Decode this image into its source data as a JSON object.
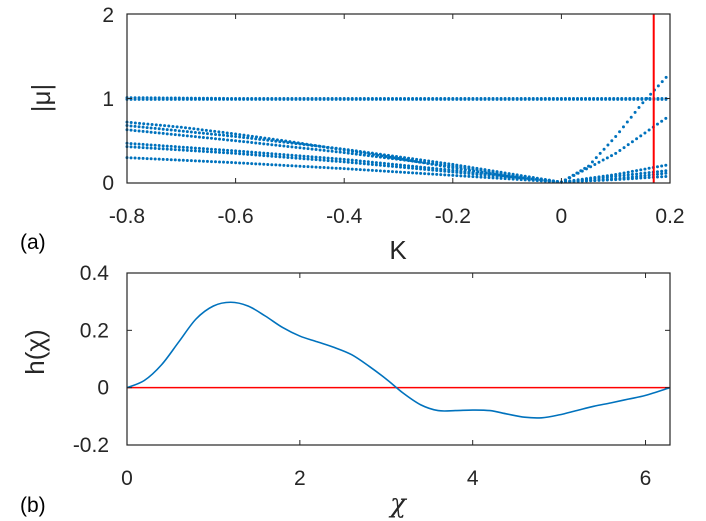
{
  "chart_data": [
    {
      "type": "scatter",
      "panel_label": "(a)",
      "xlabel": "K",
      "ylabel": "|μ|",
      "xlim": [
        -0.8,
        0.2
      ],
      "ylim": [
        0,
        2
      ],
      "xticks": [
        "-0.8",
        "-0.6",
        "-0.4",
        "-0.2",
        "0",
        "0.2"
      ],
      "yticks": [
        "0",
        "1",
        "2"
      ],
      "grid": false,
      "marker_color": "#0072BD",
      "vline": {
        "x": 0.17,
        "color": "#FF0000"
      },
      "series": [
        {
          "x": [
            -0.8,
            -0.6,
            -0.4,
            -0.2,
            0.0,
            0.2
          ],
          "values": [
            1.01,
            1.0,
            1.0,
            1.0,
            1.0,
            1.0
          ]
        },
        {
          "x": [
            -0.8,
            -0.6,
            -0.4,
            -0.2,
            0.0,
            0.2
          ],
          "values": [
            0.99,
            0.99,
            0.99,
            0.99,
            0.99,
            0.99
          ]
        },
        {
          "x": [
            -0.8,
            -0.7,
            -0.6,
            -0.5,
            -0.4,
            -0.3,
            -0.2,
            -0.1,
            0.0,
            0.05,
            0.1,
            0.15,
            0.2
          ],
          "values": [
            0.72,
            0.66,
            0.58,
            0.49,
            0.39,
            0.29,
            0.18,
            0.08,
            0.01,
            0.2,
            0.55,
            0.95,
            1.3
          ]
        },
        {
          "x": [
            -0.8,
            -0.6,
            -0.4,
            -0.2,
            0.0,
            0.1,
            0.2
          ],
          "values": [
            0.68,
            0.55,
            0.4,
            0.22,
            0.01,
            0.35,
            0.8
          ]
        },
        {
          "x": [
            -0.8,
            -0.6,
            -0.4,
            -0.2,
            0.0,
            0.1,
            0.2
          ],
          "values": [
            0.63,
            0.5,
            0.36,
            0.2,
            0.01,
            0.1,
            0.22
          ]
        },
        {
          "x": [
            -0.8,
            -0.6,
            -0.4,
            -0.2,
            0.0,
            0.1,
            0.2
          ],
          "values": [
            0.47,
            0.38,
            0.28,
            0.15,
            0.01,
            0.08,
            0.15
          ]
        },
        {
          "x": [
            -0.8,
            -0.6,
            -0.4,
            -0.2,
            0.0,
            0.1,
            0.2
          ],
          "values": [
            0.43,
            0.35,
            0.25,
            0.13,
            0.01,
            0.05,
            0.12
          ]
        },
        {
          "x": [
            -0.8,
            -0.6,
            -0.4,
            -0.2,
            0.0,
            0.1,
            0.2
          ],
          "values": [
            0.3,
            0.24,
            0.17,
            0.09,
            0.01,
            0.04,
            0.08
          ]
        }
      ]
    },
    {
      "type": "line",
      "panel_label": "(b)",
      "xlabel": "χ",
      "ylabel": "h(χ)",
      "xlim": [
        0,
        6.2832
      ],
      "ylim": [
        -0.2,
        0.4
      ],
      "xticks": [
        "0",
        "2",
        "4",
        "6"
      ],
      "yticks": [
        "-0.2",
        "0",
        "0.2",
        "0.4"
      ],
      "grid": false,
      "line_color": "#0072BD",
      "zero_line_color": "#FF0000",
      "series": [
        {
          "x": [
            0.0,
            0.2,
            0.4,
            0.6,
            0.8,
            1.0,
            1.2,
            1.4,
            1.6,
            1.8,
            2.0,
            2.2,
            2.4,
            2.6,
            2.8,
            3.0,
            3.2,
            3.4,
            3.6,
            3.8,
            4.0,
            4.2,
            4.4,
            4.6,
            4.8,
            5.0,
            5.2,
            5.4,
            5.6,
            5.8,
            6.0,
            6.2832
          ],
          "values": [
            0.0,
            0.025,
            0.08,
            0.16,
            0.24,
            0.285,
            0.298,
            0.285,
            0.25,
            0.21,
            0.18,
            0.16,
            0.14,
            0.115,
            0.075,
            0.03,
            -0.02,
            -0.06,
            -0.08,
            -0.08,
            -0.078,
            -0.08,
            -0.092,
            -0.103,
            -0.105,
            -0.095,
            -0.08,
            -0.065,
            -0.053,
            -0.04,
            -0.027,
            0.0
          ]
        }
      ]
    }
  ]
}
